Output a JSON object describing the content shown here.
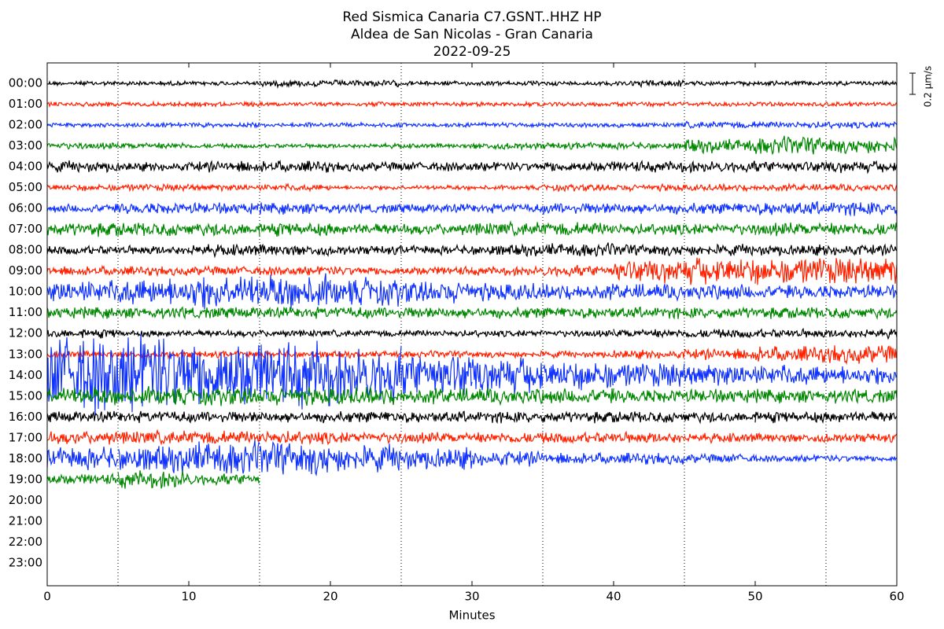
{
  "chart_data": {
    "type": "helicorder",
    "title": [
      "Red Sismica Canaria C7.GSNT..HHZ HP",
      "Aldea de San Nicolas - Gran Canaria",
      "2022-09-25"
    ],
    "xlabel": "Minutes",
    "xlim": [
      0,
      60
    ],
    "xticks": [
      0,
      10,
      20,
      30,
      40,
      50,
      60
    ],
    "grid_x": [
      5,
      15,
      25,
      35,
      45,
      55
    ],
    "scale": {
      "value": 0.2,
      "label": "0.2 μm/s"
    },
    "series": [
      {
        "name": "00:00",
        "color": "#000000",
        "values": [
          0.02,
          0.02,
          0.02,
          0.03,
          0.03,
          0.02,
          0.02,
          0.02,
          0.03,
          0.02,
          0.02,
          0.02
        ]
      },
      {
        "name": "01:00",
        "color": "#ff2200",
        "values": [
          0.02,
          0.02,
          0.02,
          0.02,
          0.02,
          0.02,
          0.02,
          0.02,
          0.02,
          0.02,
          0.02,
          0.02
        ]
      },
      {
        "name": "02:00",
        "color": "#1133ff",
        "values": [
          0.02,
          0.02,
          0.02,
          0.02,
          0.02,
          0.02,
          0.02,
          0.02,
          0.02,
          0.03,
          0.03,
          0.03
        ]
      },
      {
        "name": "03:00",
        "color": "#008800",
        "values": [
          0.03,
          0.03,
          0.02,
          0.02,
          0.02,
          0.02,
          0.03,
          0.03,
          0.03,
          0.06,
          0.08,
          0.07
        ]
      },
      {
        "name": "04:00",
        "color": "#000000",
        "values": [
          0.05,
          0.04,
          0.05,
          0.05,
          0.04,
          0.04,
          0.04,
          0.05,
          0.05,
          0.05,
          0.05,
          0.05
        ]
      },
      {
        "name": "05:00",
        "color": "#ff2200",
        "values": [
          0.03,
          0.03,
          0.03,
          0.03,
          0.02,
          0.02,
          0.02,
          0.03,
          0.03,
          0.03,
          0.03,
          0.03
        ]
      },
      {
        "name": "06:00",
        "color": "#1133ff",
        "values": [
          0.04,
          0.05,
          0.05,
          0.05,
          0.04,
          0.04,
          0.04,
          0.05,
          0.05,
          0.05,
          0.06,
          0.06
        ]
      },
      {
        "name": "07:00",
        "color": "#008800",
        "values": [
          0.06,
          0.06,
          0.06,
          0.06,
          0.05,
          0.05,
          0.06,
          0.06,
          0.05,
          0.05,
          0.06,
          0.06
        ]
      },
      {
        "name": "08:00",
        "color": "#000000",
        "values": [
          0.04,
          0.04,
          0.05,
          0.05,
          0.04,
          0.04,
          0.05,
          0.06,
          0.05,
          0.05,
          0.05,
          0.05
        ]
      },
      {
        "name": "09:00",
        "color": "#ff2200",
        "values": [
          0.04,
          0.04,
          0.04,
          0.04,
          0.04,
          0.04,
          0.04,
          0.05,
          0.1,
          0.12,
          0.12,
          0.12
        ]
      },
      {
        "name": "10:00",
        "color": "#1133ff",
        "values": [
          0.1,
          0.12,
          0.15,
          0.15,
          0.12,
          0.1,
          0.08,
          0.07,
          0.07,
          0.07,
          0.06,
          0.06
        ]
      },
      {
        "name": "11:00",
        "color": "#008800",
        "values": [
          0.05,
          0.05,
          0.05,
          0.05,
          0.05,
          0.05,
          0.05,
          0.05,
          0.05,
          0.05,
          0.05,
          0.05
        ]
      },
      {
        "name": "12:00",
        "color": "#000000",
        "values": [
          0.04,
          0.03,
          0.03,
          0.03,
          0.03,
          0.03,
          0.03,
          0.03,
          0.04,
          0.04,
          0.04,
          0.04
        ]
      },
      {
        "name": "13:00",
        "color": "#ff2200",
        "values": [
          0.03,
          0.03,
          0.03,
          0.03,
          0.03,
          0.03,
          0.03,
          0.03,
          0.04,
          0.05,
          0.07,
          0.08
        ]
      },
      {
        "name": "14:00",
        "color": "#1133ff",
        "values": [
          0.35,
          0.35,
          0.33,
          0.3,
          0.25,
          0.2,
          0.16,
          0.13,
          0.11,
          0.1,
          0.09,
          0.08
        ]
      },
      {
        "name": "15:00",
        "color": "#008800",
        "values": [
          0.08,
          0.08,
          0.08,
          0.08,
          0.08,
          0.07,
          0.07,
          0.07,
          0.06,
          0.06,
          0.06,
          0.06
        ]
      },
      {
        "name": "16:00",
        "color": "#000000",
        "values": [
          0.05,
          0.05,
          0.05,
          0.05,
          0.05,
          0.05,
          0.05,
          0.05,
          0.05,
          0.05,
          0.05,
          0.05
        ]
      },
      {
        "name": "17:00",
        "color": "#ff2200",
        "values": [
          0.06,
          0.06,
          0.06,
          0.06,
          0.05,
          0.05,
          0.05,
          0.05,
          0.05,
          0.04,
          0.04,
          0.04
        ]
      },
      {
        "name": "18:00",
        "color": "#1133ff",
        "values": [
          0.1,
          0.12,
          0.15,
          0.15,
          0.12,
          0.1,
          0.07,
          0.05,
          0.05,
          0.04,
          0.03,
          0.03
        ]
      },
      {
        "name": "19:00",
        "color": "#008800",
        "values": [
          0.05,
          0.08,
          0.05,
          null,
          null,
          null,
          null,
          null,
          null,
          null,
          null,
          null
        ]
      },
      {
        "name": "20:00",
        "color": "#1133ff",
        "values": [
          null,
          null,
          null,
          null,
          null,
          null,
          null,
          null,
          null,
          null,
          null,
          null
        ]
      },
      {
        "name": "21:00",
        "color": "#008800",
        "values": [
          null,
          null,
          null,
          null,
          null,
          null,
          null,
          null,
          null,
          null,
          null,
          null
        ]
      },
      {
        "name": "22:00",
        "color": "#000000",
        "values": [
          null,
          null,
          null,
          null,
          null,
          null,
          null,
          null,
          null,
          null,
          null,
          null
        ]
      },
      {
        "name": "23:00",
        "color": "#ff2200",
        "values": [
          null,
          null,
          null,
          null,
          null,
          null,
          null,
          null,
          null,
          null,
          null,
          null
        ]
      }
    ]
  }
}
